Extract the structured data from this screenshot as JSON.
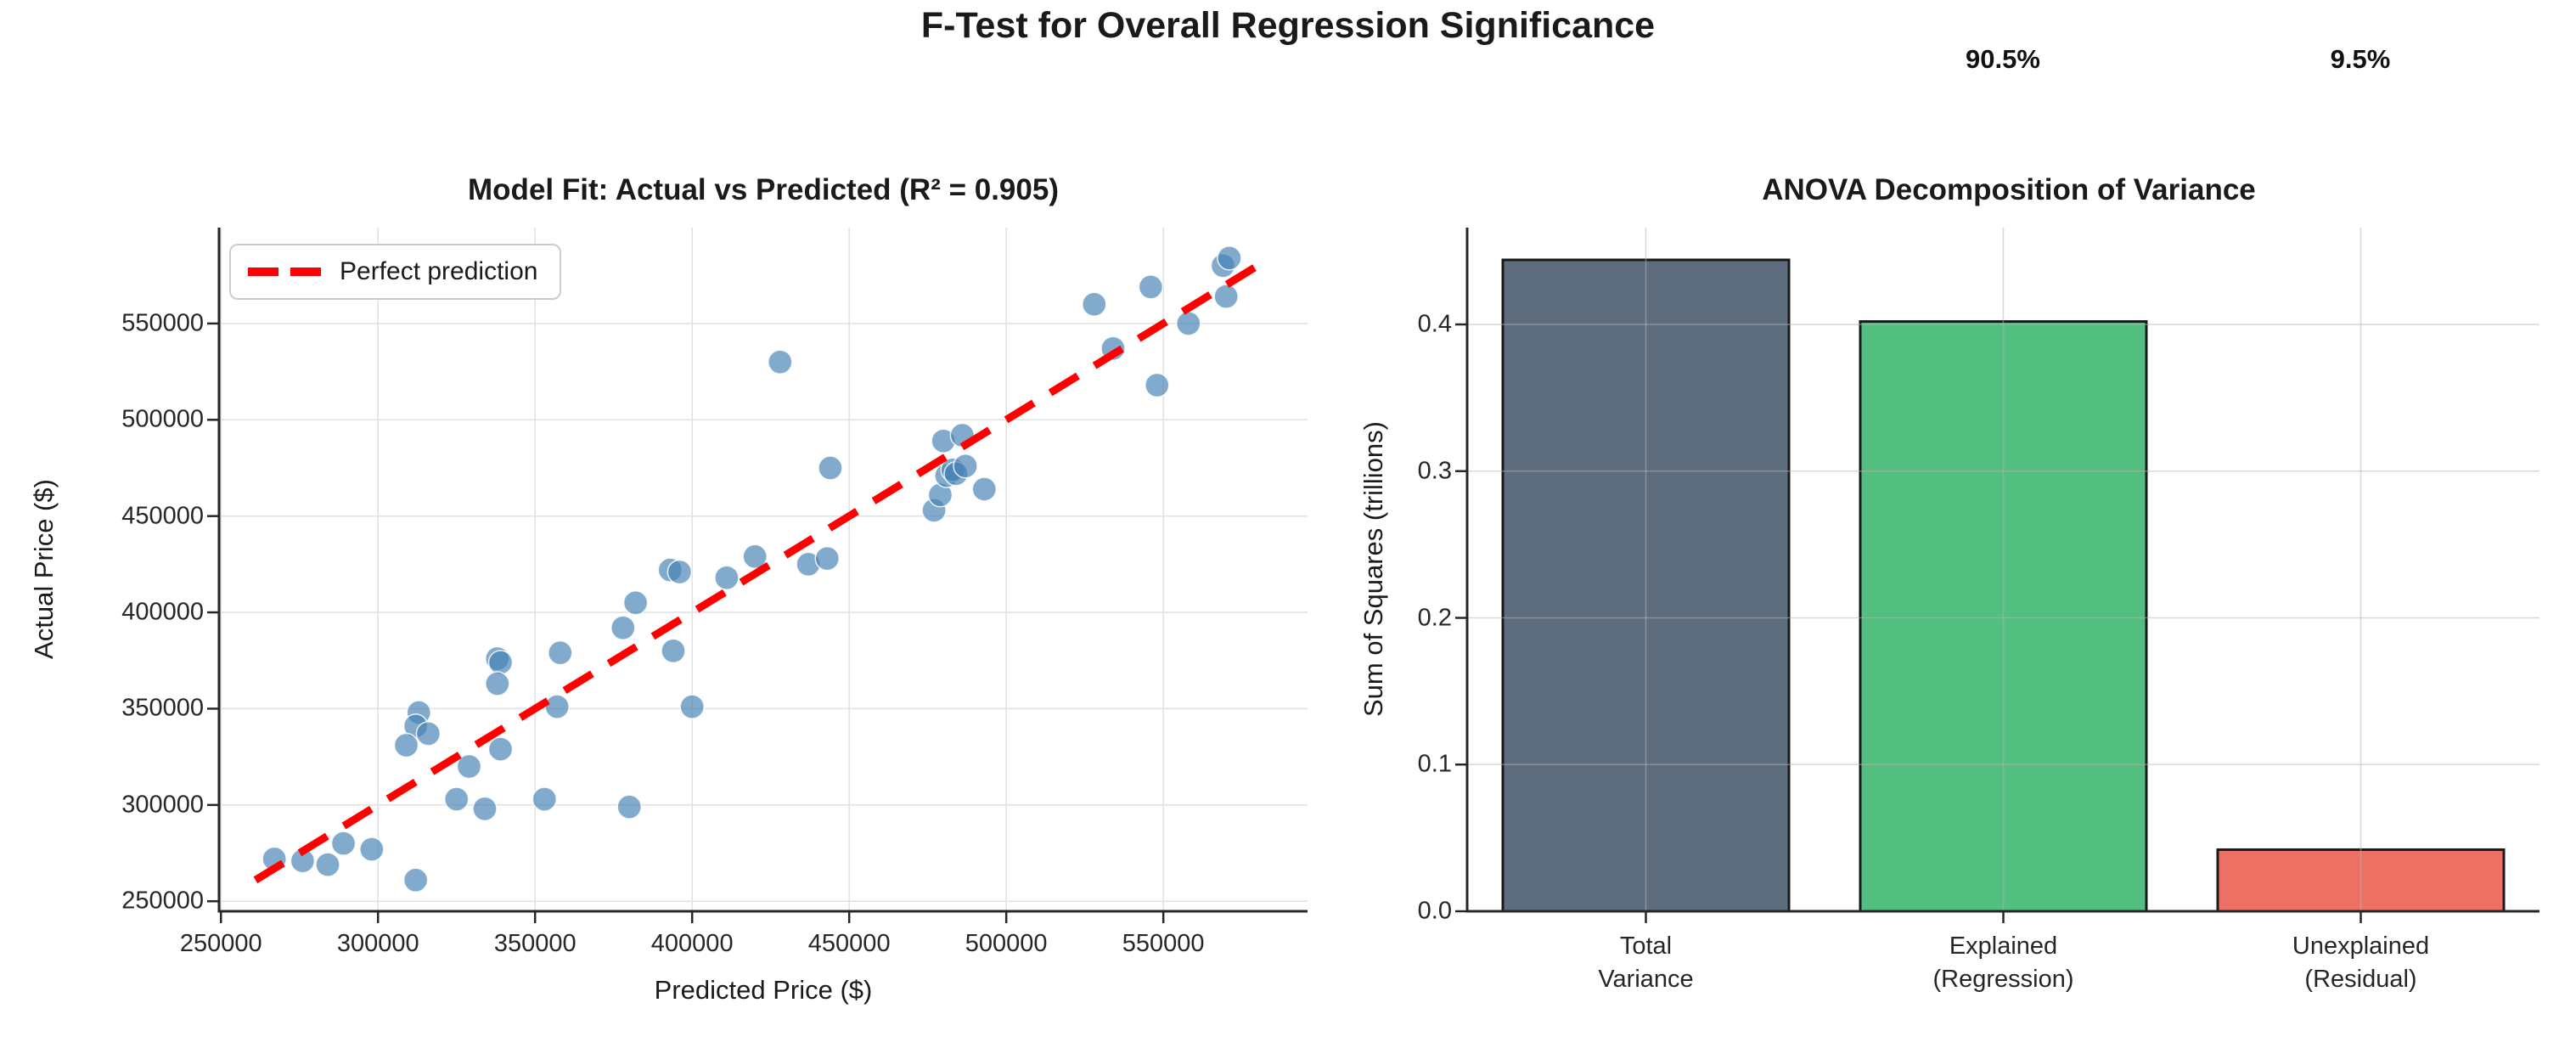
{
  "figure": {
    "suptitle": "F-Test for Overall Regression Significance",
    "background_color": "#ffffff",
    "text_color": "#1a1a1a"
  },
  "chart_data": [
    {
      "type": "scatter",
      "title": "Model Fit: Actual vs Predicted (R² = 0.905)",
      "r_squared": 0.905,
      "xlabel": "Predicted Price ($)",
      "ylabel": "Actual Price ($)",
      "xlim": [
        249400,
        595900
      ],
      "ylim": [
        244800,
        599800
      ],
      "xticks": [
        250000,
        300000,
        350000,
        400000,
        450000,
        500000,
        550000
      ],
      "yticks": [
        250000,
        300000,
        350000,
        400000,
        450000,
        500000,
        550000
      ],
      "grid": true,
      "grid_color": "#e2e2e2",
      "point_color": "#4682B4",
      "point_opacity": 0.68,
      "legend": {
        "label": "Perfect prediction",
        "position": "upper left",
        "line_color": "#ff0000",
        "line_style": "dashed"
      },
      "perfect_prediction_line": {
        "color": "#ff0000",
        "style": "dashed",
        "x": [
          261000,
          583000
        ],
        "y": [
          261000,
          583000
        ]
      },
      "points_predicted_vs_actual": [
        [
          267000,
          272000
        ],
        [
          276000,
          271000
        ],
        [
          284000,
          269000
        ],
        [
          289000,
          280000
        ],
        [
          298000,
          277000
        ],
        [
          312000,
          261000
        ],
        [
          313000,
          348000
        ],
        [
          312000,
          341000
        ],
        [
          316000,
          337000
        ],
        [
          309000,
          331000
        ],
        [
          325000,
          303000
        ],
        [
          329000,
          320000
        ],
        [
          334000,
          298000
        ],
        [
          338000,
          376000
        ],
        [
          339000,
          374000
        ],
        [
          338000,
          363000
        ],
        [
          339000,
          329000
        ],
        [
          353000,
          303000
        ],
        [
          357000,
          351000
        ],
        [
          358000,
          379000
        ],
        [
          378000,
          392000
        ],
        [
          380000,
          299000
        ],
        [
          382000,
          405000
        ],
        [
          393000,
          422000
        ],
        [
          396000,
          421000
        ],
        [
          394000,
          380000
        ],
        [
          400000,
          351000
        ],
        [
          411000,
          418000
        ],
        [
          420000,
          429000
        ],
        [
          428000,
          530000
        ],
        [
          437000,
          425000
        ],
        [
          443000,
          428000
        ],
        [
          444000,
          475000
        ],
        [
          477000,
          453000
        ],
        [
          479000,
          461000
        ],
        [
          480000,
          489000
        ],
        [
          481000,
          471000
        ],
        [
          483000,
          474000
        ],
        [
          484000,
          472000
        ],
        [
          486000,
          492000
        ],
        [
          487000,
          476000
        ],
        [
          493000,
          464000
        ],
        [
          528000,
          560000
        ],
        [
          534000,
          537000
        ],
        [
          546000,
          569000
        ],
        [
          548000,
          518000
        ],
        [
          558000,
          550000
        ],
        [
          570000,
          564000
        ],
        [
          569000,
          580000
        ],
        [
          571000,
          584000
        ]
      ]
    },
    {
      "type": "bar",
      "title": "ANOVA Decomposition of Variance",
      "ylabel": "Sum of Squares (trillions)",
      "categories": [
        "Total\nVariance",
        "Explained\n(Regression)",
        "Unexplained\n(Residual)"
      ],
      "values": [
        0.444,
        0.402,
        0.042
      ],
      "bar_colors": [
        "#5d6d7e",
        "#52be80",
        "#ec7063"
      ],
      "bar_edge_color": "#1a1a1a",
      "ylim": [
        0,
        0.466
      ],
      "yticks": [
        "0.0",
        "0.1",
        "0.2",
        "0.3",
        "0.4"
      ],
      "grid": true,
      "annotations": [
        {
          "text": "90.5%",
          "bar_index": 1
        },
        {
          "text": "9.5%",
          "bar_index": 2
        }
      ]
    }
  ]
}
